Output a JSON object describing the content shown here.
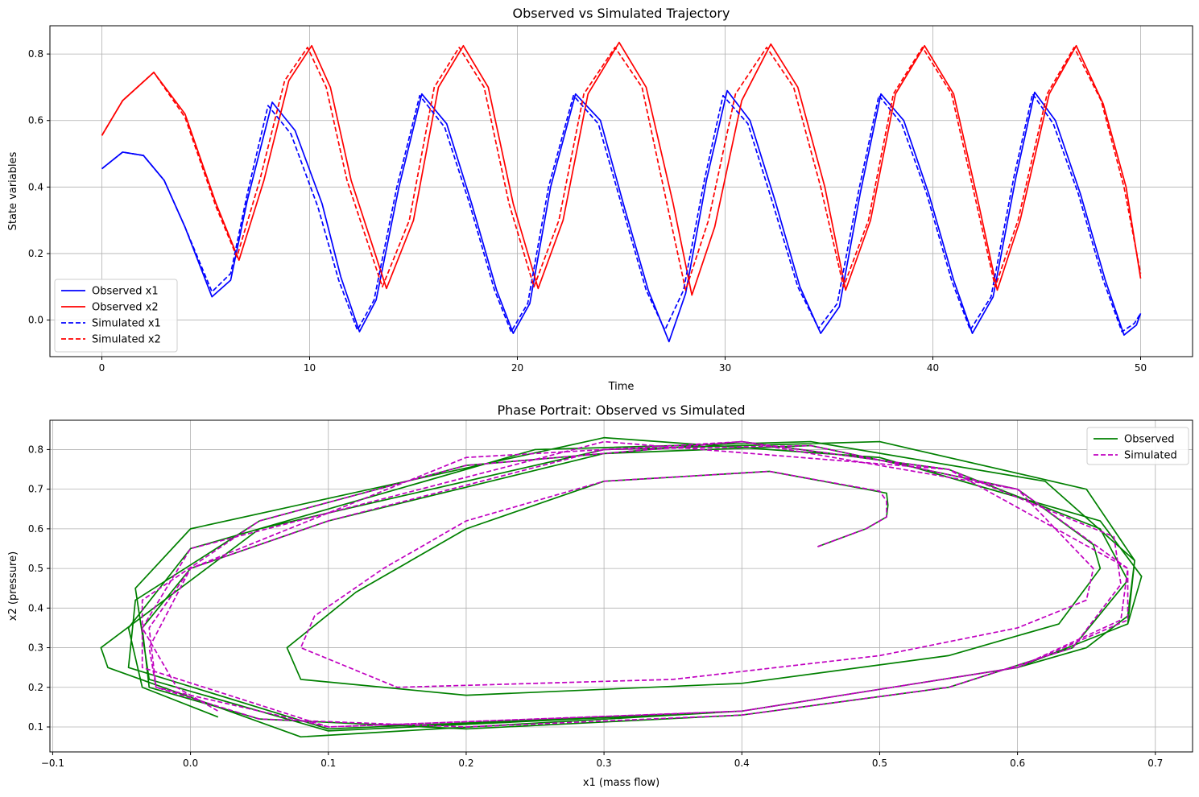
{
  "chart_data": [
    {
      "type": "line",
      "title": "Observed vs Simulated Trajectory",
      "xlabel": "Time",
      "ylabel": "State variables",
      "xlim": [
        -2.5,
        52.5
      ],
      "ylim": [
        -0.11,
        0.885
      ],
      "xticks": [
        0,
        10,
        20,
        30,
        40,
        50
      ],
      "xtick_labels": [
        "0",
        "10",
        "20",
        "30",
        "40",
        "50"
      ],
      "yticks": [
        0.0,
        0.2,
        0.4,
        0.6,
        0.8
      ],
      "ytick_labels": [
        "0.0",
        "0.2",
        "0.4",
        "0.6",
        "0.8"
      ],
      "grid": true,
      "legend_position": "lower-left",
      "series": [
        {
          "name": "Observed x1",
          "color": "#0000ff",
          "style": "solid",
          "x": [
            0,
            1,
            2,
            3,
            4,
            5.3,
            6.2,
            7,
            8.2,
            9.3,
            10.6,
            11.5,
            12.4,
            13.2,
            14.3,
            15.4,
            16.6,
            17.8,
            19,
            19.8,
            20.6,
            21.6,
            22.8,
            24,
            25.1,
            26.3,
            27.3,
            28.1,
            29.1,
            30.1,
            31.2,
            32.4,
            33.6,
            34.6,
            35.5,
            36.5,
            37.5,
            38.6,
            39.8,
            41,
            41.9,
            42.9,
            44,
            44.9,
            45.9,
            47.1,
            48.3,
            49.2,
            49.8,
            50
          ],
          "y": [
            0.455,
            0.505,
            0.495,
            0.42,
            0.28,
            0.07,
            0.12,
            0.36,
            0.655,
            0.57,
            0.35,
            0.13,
            -0.035,
            0.06,
            0.4,
            0.68,
            0.59,
            0.35,
            0.09,
            -0.04,
            0.05,
            0.4,
            0.68,
            0.6,
            0.35,
            0.09,
            -0.065,
            0.08,
            0.42,
            0.69,
            0.6,
            0.36,
            0.1,
            -0.04,
            0.04,
            0.38,
            0.68,
            0.6,
            0.38,
            0.12,
            -0.04,
            0.07,
            0.43,
            0.685,
            0.6,
            0.38,
            0.12,
            -0.045,
            -0.015,
            0.02
          ]
        },
        {
          "name": "Observed x2",
          "color": "#ff0000",
          "style": "solid",
          "x": [
            0,
            1,
            2.5,
            4,
            5.5,
            6.6,
            7.8,
            9,
            10.1,
            11,
            12,
            13.7,
            15,
            16.2,
            17.4,
            18.6,
            19.8,
            21,
            22.2,
            23.4,
            24.9,
            26.2,
            27.5,
            28.4,
            29.5,
            30.8,
            32.2,
            33.5,
            34.8,
            35.8,
            37,
            38.2,
            39.6,
            41,
            42.2,
            43.1,
            44.2,
            45.6,
            46.9,
            48.2,
            49.3,
            50
          ],
          "y": [
            0.555,
            0.66,
            0.745,
            0.62,
            0.35,
            0.18,
            0.42,
            0.72,
            0.825,
            0.7,
            0.42,
            0.095,
            0.3,
            0.7,
            0.825,
            0.7,
            0.35,
            0.095,
            0.3,
            0.68,
            0.835,
            0.7,
            0.35,
            0.075,
            0.28,
            0.66,
            0.83,
            0.7,
            0.4,
            0.09,
            0.3,
            0.68,
            0.825,
            0.68,
            0.35,
            0.09,
            0.3,
            0.68,
            0.825,
            0.65,
            0.4,
            0.125
          ]
        },
        {
          "name": "Simulated x1",
          "color": "#0000ff",
          "style": "dashed",
          "x": [
            0,
            1,
            2,
            3,
            4,
            5.3,
            6.2,
            7,
            8,
            9.1,
            10.4,
            11.4,
            12.3,
            13.1,
            14.2,
            15.3,
            16.5,
            17.7,
            18.9,
            19.7,
            20.5,
            21.5,
            22.7,
            23.9,
            25,
            26.2,
            27.1,
            28,
            29,
            29.9,
            31.1,
            32.3,
            33.5,
            34.5,
            35.4,
            36.4,
            37.4,
            38.5,
            39.7,
            40.9,
            41.8,
            42.8,
            43.9,
            44.8,
            45.8,
            47,
            48.2,
            49.1,
            49.7,
            50
          ],
          "y": [
            0.455,
            0.505,
            0.495,
            0.42,
            0.28,
            0.085,
            0.14,
            0.38,
            0.645,
            0.56,
            0.34,
            0.12,
            -0.03,
            0.06,
            0.4,
            0.675,
            0.58,
            0.35,
            0.09,
            -0.035,
            0.05,
            0.4,
            0.675,
            0.59,
            0.35,
            0.09,
            -0.03,
            0.09,
            0.42,
            0.675,
            0.59,
            0.35,
            0.1,
            -0.025,
            0.05,
            0.38,
            0.675,
            0.59,
            0.38,
            0.12,
            -0.03,
            0.07,
            0.43,
            0.68,
            0.59,
            0.38,
            0.12,
            -0.035,
            -0.01,
            0.02
          ]
        },
        {
          "name": "Simulated x2",
          "color": "#ff0000",
          "style": "dashed",
          "x": [
            0,
            1,
            2.5,
            4,
            5.5,
            6.5,
            7.6,
            8.8,
            9.9,
            10.8,
            11.8,
            13.5,
            14.8,
            16,
            17.2,
            18.4,
            19.6,
            20.8,
            22,
            23.2,
            24.7,
            26,
            27.2,
            28.1,
            29.2,
            30.5,
            32,
            33.3,
            34.6,
            35.7,
            36.9,
            38.1,
            39.5,
            40.9,
            42.1,
            43,
            44.1,
            45.5,
            46.8,
            48.1,
            49.2,
            50
          ],
          "y": [
            0.555,
            0.66,
            0.745,
            0.61,
            0.34,
            0.19,
            0.42,
            0.72,
            0.82,
            0.7,
            0.42,
            0.1,
            0.3,
            0.7,
            0.82,
            0.7,
            0.35,
            0.1,
            0.3,
            0.68,
            0.82,
            0.7,
            0.35,
            0.09,
            0.3,
            0.68,
            0.82,
            0.7,
            0.4,
            0.1,
            0.3,
            0.68,
            0.82,
            0.68,
            0.35,
            0.1,
            0.3,
            0.68,
            0.82,
            0.66,
            0.4,
            0.14
          ]
        }
      ]
    },
    {
      "type": "line",
      "title": "Phase Portrait: Observed vs Simulated",
      "xlabel": "x1 (mass flow)",
      "ylabel": "x2 (pressure)",
      "xlim": [
        -0.102,
        0.727
      ],
      "ylim": [
        0.037,
        0.874
      ],
      "xticks": [
        -0.1,
        0.0,
        0.1,
        0.2,
        0.3,
        0.4,
        0.5,
        0.6,
        0.7
      ],
      "xtick_labels": [
        "−0.1",
        "0.0",
        "0.1",
        "0.2",
        "0.3",
        "0.4",
        "0.5",
        "0.6",
        "0.7"
      ],
      "yticks": [
        0.1,
        0.2,
        0.3,
        0.4,
        0.5,
        0.6,
        0.7,
        0.8
      ],
      "ytick_labels": [
        "0.1",
        "0.2",
        "0.3",
        "0.4",
        "0.5",
        "0.6",
        "0.7",
        "0.8"
      ],
      "grid": true,
      "legend_position": "upper-right",
      "series": [
        {
          "name": "Observed",
          "color": "#008000",
          "style": "solid",
          "x": [
            0.455,
            0.49,
            0.505,
            0.506,
            0.505,
            0.49,
            0.42,
            0.3,
            0.2,
            0.12,
            0.07,
            0.08,
            0.2,
            0.4,
            0.55,
            0.63,
            0.66,
            0.655,
            0.6,
            0.45,
            0.3,
            0.1,
            0.0,
            -0.035,
            -0.03,
            0.05,
            0.2,
            0.4,
            0.55,
            0.64,
            0.68,
            0.66,
            0.55,
            0.4,
            0.2,
            0.05,
            -0.04,
            -0.045,
            0.1,
            0.4,
            0.6,
            0.65,
            0.68,
            0.685,
            0.65,
            0.5,
            0.3,
            0.05,
            -0.065,
            -0.06,
            0.08,
            0.4,
            0.6,
            0.68,
            0.69,
            0.66,
            0.5,
            0.3,
            0.0,
            -0.04,
            -0.03,
            0.1,
            0.4,
            0.6,
            0.68,
            0.685,
            0.62,
            0.45,
            0.25,
            0.0,
            -0.045,
            -0.035,
            0.02
          ],
          "y": [
            0.555,
            0.6,
            0.63,
            0.66,
            0.69,
            0.7,
            0.745,
            0.72,
            0.6,
            0.44,
            0.3,
            0.22,
            0.18,
            0.21,
            0.28,
            0.36,
            0.5,
            0.56,
            0.7,
            0.81,
            0.79,
            0.62,
            0.5,
            0.35,
            0.2,
            0.12,
            0.095,
            0.13,
            0.2,
            0.3,
            0.47,
            0.6,
            0.75,
            0.82,
            0.76,
            0.62,
            0.42,
            0.25,
            0.095,
            0.14,
            0.25,
            0.3,
            0.38,
            0.52,
            0.7,
            0.82,
            0.8,
            0.6,
            0.3,
            0.25,
            0.075,
            0.14,
            0.25,
            0.36,
            0.48,
            0.62,
            0.78,
            0.83,
            0.6,
            0.45,
            0.22,
            0.09,
            0.14,
            0.25,
            0.36,
            0.52,
            0.72,
            0.82,
            0.8,
            0.55,
            0.35,
            0.2,
            0.125
          ]
        },
        {
          "name": "Simulated",
          "color": "#c000c0",
          "style": "dashed",
          "x": [
            0.455,
            0.49,
            0.505,
            0.505,
            0.5,
            0.42,
            0.3,
            0.2,
            0.14,
            0.09,
            0.08,
            0.15,
            0.35,
            0.5,
            0.6,
            0.65,
            0.655,
            0.6,
            0.45,
            0.3,
            0.1,
            0.0,
            -0.03,
            -0.025,
            0.05,
            0.2,
            0.4,
            0.55,
            0.64,
            0.675,
            0.67,
            0.55,
            0.4,
            0.2,
            0.05,
            -0.035,
            -0.035,
            0.1,
            0.4,
            0.6,
            0.675,
            0.68,
            0.6,
            0.4,
            0.2,
            0.0,
            -0.03,
            -0.025,
            0.1,
            0.4,
            0.6,
            0.68,
            0.68,
            0.55,
            0.3,
            0.0,
            -0.035,
            -0.01,
            0.02
          ],
          "y": [
            0.555,
            0.6,
            0.63,
            0.67,
            0.695,
            0.745,
            0.72,
            0.62,
            0.5,
            0.38,
            0.3,
            0.2,
            0.22,
            0.28,
            0.35,
            0.42,
            0.5,
            0.7,
            0.81,
            0.8,
            0.62,
            0.5,
            0.35,
            0.2,
            0.12,
            0.1,
            0.13,
            0.2,
            0.3,
            0.46,
            0.58,
            0.75,
            0.82,
            0.76,
            0.62,
            0.42,
            0.25,
            0.1,
            0.14,
            0.25,
            0.37,
            0.5,
            0.7,
            0.82,
            0.78,
            0.5,
            0.3,
            0.2,
            0.1,
            0.14,
            0.25,
            0.37,
            0.5,
            0.75,
            0.82,
            0.55,
            0.35,
            0.2,
            0.14
          ]
        }
      ]
    }
  ]
}
